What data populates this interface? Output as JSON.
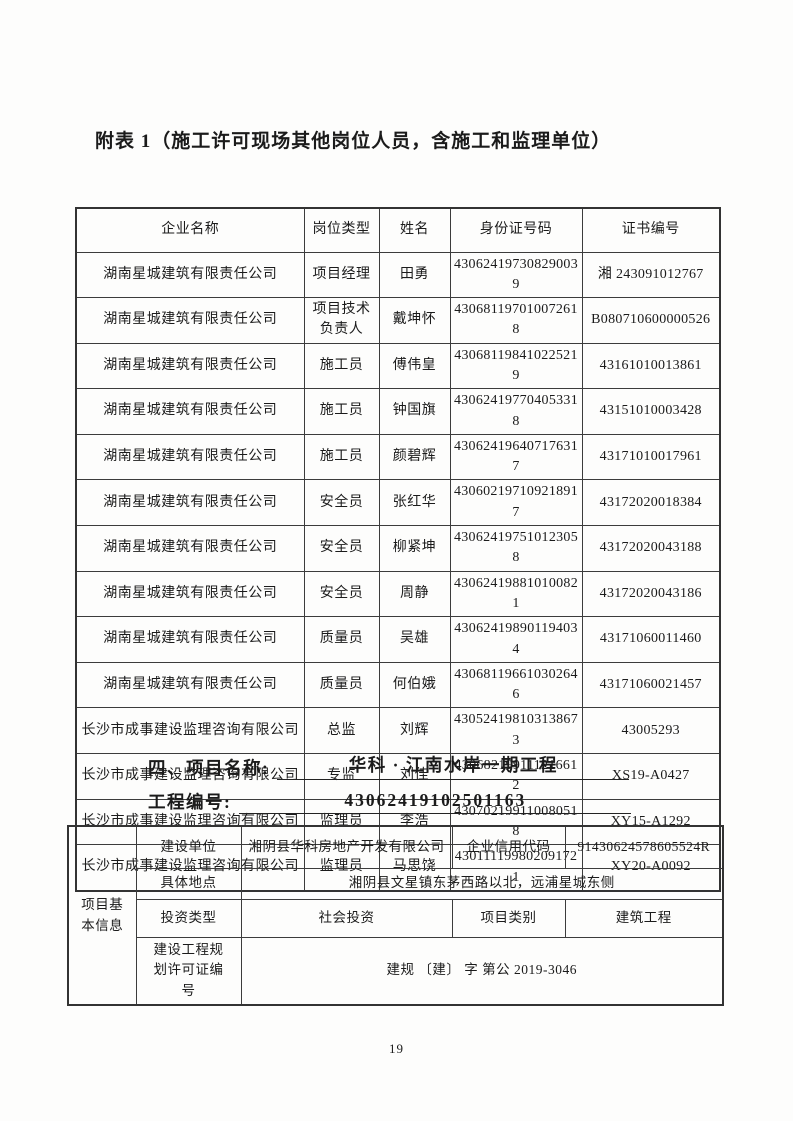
{
  "page": {
    "title": "附表 1（施工许可现场其他岗位人员，含施工和监理单位）",
    "page_number": "19"
  },
  "personnel_table": {
    "headers": [
      "企业名称",
      "岗位类型",
      "姓名",
      "身份证号码",
      "证书编号"
    ],
    "rows": [
      [
        "湖南星城建筑有限责任公司",
        "项目经理",
        "田勇",
        "430624197308290039",
        "湘 243091012767"
      ],
      [
        "湖南星城建筑有限责任公司",
        "项目技术负责人",
        "戴坤怀",
        "430681197010072618",
        "B080710600000526"
      ],
      [
        "湖南星城建筑有限责任公司",
        "施工员",
        "傅伟皇",
        "430681198410225219",
        "43161010013861"
      ],
      [
        "湖南星城建筑有限责任公司",
        "施工员",
        "钟国旗",
        "430624197704053318",
        "43151010003428"
      ],
      [
        "湖南星城建筑有限责任公司",
        "施工员",
        "颜碧辉",
        "430624196407176317",
        "43171010017961"
      ],
      [
        "湖南星城建筑有限责任公司",
        "安全员",
        "张红华",
        "430602197109218917",
        "43172020018384"
      ],
      [
        "湖南星城建筑有限责任公司",
        "安全员",
        "柳紧坤",
        "430624197510123058",
        "43172020043188"
      ],
      [
        "湖南星城建筑有限责任公司",
        "安全员",
        "周静",
        "430624198810100821",
        "43172020043186"
      ],
      [
        "湖南星城建筑有限责任公司",
        "质量员",
        "吴雄",
        "430624198901194034",
        "43171060011460"
      ],
      [
        "湖南星城建筑有限责任公司",
        "质量员",
        "何伯娥",
        "430681196610302646",
        "43171060021457"
      ],
      [
        "长沙市成事建设监理咨询有限公司",
        "总监",
        "刘辉",
        "430524198103138673",
        "43005293"
      ],
      [
        "长沙市成事建设监理咨询有限公司",
        "专监",
        "刘佳",
        "430682199111216612",
        "XS19-A0427"
      ],
      [
        "长沙市成事建设监理咨询有限公司",
        "监理员",
        "李浩",
        "430702199110080518",
        "XY15-A1292"
      ],
      [
        "长沙市成事建设监理咨询有限公司",
        "监理员",
        "马思饶",
        "430111199802091721",
        "XY20-A0092"
      ]
    ]
  },
  "project_section": {
    "name_label": "四、项目名称:",
    "name_value": "华科 · 江南水岸一期工程",
    "code_label": "工程编号:",
    "code_value": "43062419102501163"
  },
  "project_info_table": {
    "group_label": "项目基本信息",
    "r1": {
      "f1": "建设单位",
      "v1": "湘阴县华科房地产开发有限公司",
      "f2": "企业信用代码",
      "v2": "91430624578605524R"
    },
    "r2": {
      "f1": "具体地点",
      "v1": "湘阴县文星镇东茅西路以北，远浦星城东侧"
    },
    "r3": {
      "f1": "投资类型",
      "v1": "社会投资",
      "f2": "项目类别",
      "v2": "建筑工程"
    },
    "r4": {
      "f1": "建设工程规划许可证编号",
      "v1": "建规 〔建〕 字 第公 2019-3046"
    }
  }
}
